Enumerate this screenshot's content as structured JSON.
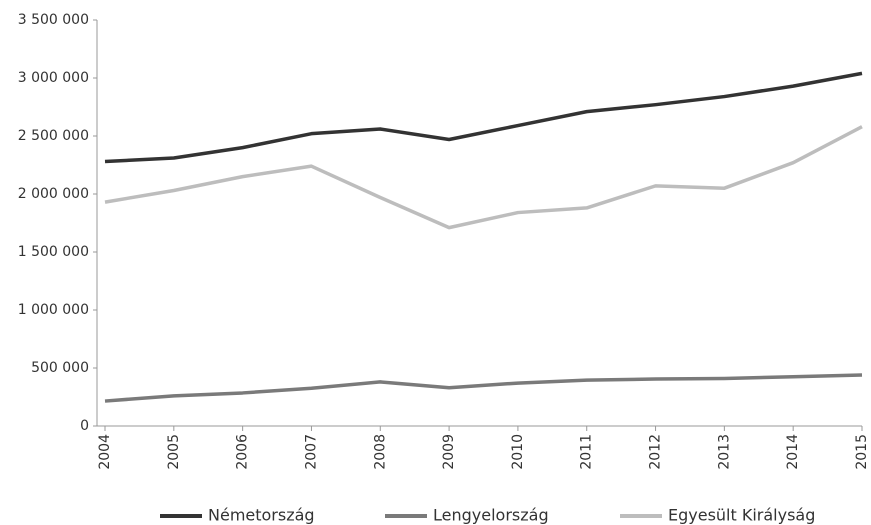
{
  "chart_data": {
    "type": "line",
    "categories": [
      "2004",
      "2005",
      "2006",
      "2007",
      "2008",
      "2009",
      "2010",
      "2011",
      "2012",
      "2013",
      "2014",
      "2015"
    ],
    "series": [
      {
        "name": "Németország",
        "color": "#333333",
        "values": [
          2280000,
          2310000,
          2400000,
          2520000,
          2560000,
          2470000,
          2590000,
          2710000,
          2770000,
          2840000,
          2930000,
          3040000
        ]
      },
      {
        "name": "Lengyelország",
        "color": "#7a7a7a",
        "values": [
          215000,
          260000,
          285000,
          325000,
          380000,
          330000,
          370000,
          395000,
          405000,
          410000,
          425000,
          440000
        ]
      },
      {
        "name": "Egyesült Királyság",
        "color": "#bdbdbd",
        "values": [
          1930000,
          2030000,
          2150000,
          2240000,
          1970000,
          1710000,
          1840000,
          1880000,
          2070000,
          2050000,
          2270000,
          2580000
        ]
      }
    ],
    "ylim": [
      0,
      3500000
    ],
    "yticks": [
      0,
      {
        "value": 500000,
        "label": "500 000"
      },
      {
        "value": 1000000,
        "label": "1 000 000"
      },
      {
        "value": 1500000,
        "label": "1 500 000"
      },
      {
        "value": 2000000,
        "label": "2 000 000"
      },
      {
        "value": 2500000,
        "label": "2 500 000"
      },
      {
        "value": 3000000,
        "label": "3 000 000"
      },
      {
        "value": 3500000,
        "label": "3 500 000"
      }
    ],
    "grid": false,
    "legend": "bottom"
  }
}
